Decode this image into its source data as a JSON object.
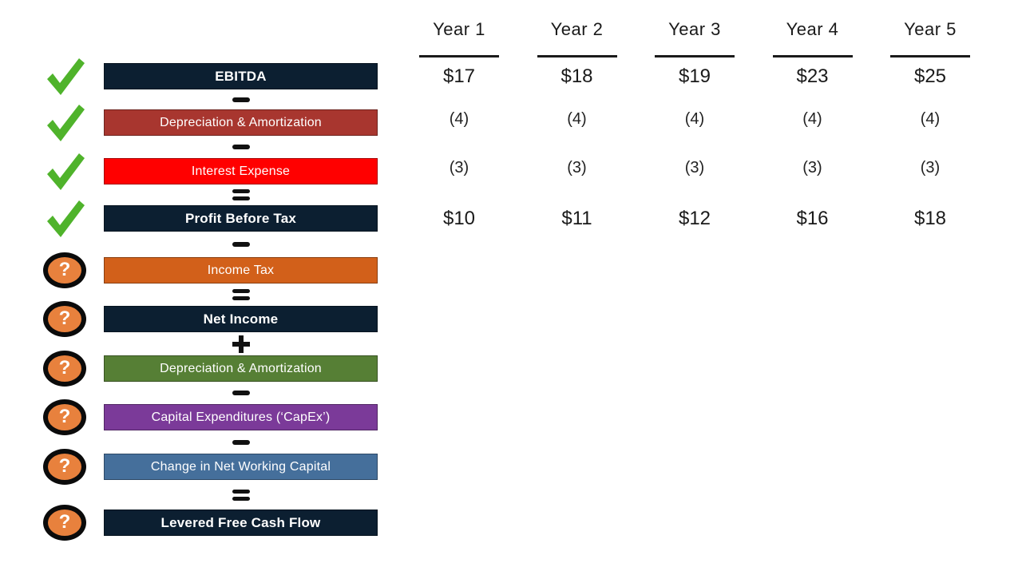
{
  "palette": {
    "navy": "#0C1F31",
    "brick_red": "#A8362F",
    "bright_red": "#FF0000",
    "orange": "#D2601A",
    "green_bar": "#567F35",
    "purple": "#7B3A99",
    "steel_blue": "#456F9B",
    "check_green": "#4FB32B",
    "question_fill": "#E8813D",
    "text_dark": "#1a1a1a"
  },
  "icons": {
    "question_glyph": "?"
  },
  "table": {
    "columns": [
      "Year 1",
      "Year 2",
      "Year 3",
      "Year 4",
      "Year 5"
    ]
  },
  "flow": {
    "rows": [
      {
        "label": "EBITDA",
        "color": "#0C1F31",
        "bold": true,
        "icon": "check",
        "operator_before": null,
        "values": [
          "$17",
          "$18",
          "$19",
          "$23",
          "$25"
        ],
        "value_style": "dollar"
      },
      {
        "label": "Depreciation & Amortization",
        "color": "#A8362F",
        "bold": false,
        "icon": "check",
        "operator_before": "minus",
        "values": [
          "(4)",
          "(4)",
          "(4)",
          "(4)",
          "(4)"
        ],
        "value_style": "paren"
      },
      {
        "label": "Interest Expense",
        "color": "#FF0000",
        "bold": false,
        "icon": "check",
        "operator_before": "minus",
        "values": [
          "(3)",
          "(3)",
          "(3)",
          "(3)",
          "(3)"
        ],
        "value_style": "paren"
      },
      {
        "label": "Profit Before Tax",
        "color": "#0C1F31",
        "bold": true,
        "icon": "check",
        "operator_before": "equals",
        "values": [
          "$10",
          "$11",
          "$12",
          "$16",
          "$18"
        ],
        "value_style": "dollar"
      },
      {
        "label": "Income Tax",
        "color": "#D2601A",
        "bold": false,
        "icon": "question",
        "operator_before": "minus",
        "values": [],
        "value_style": "none"
      },
      {
        "label": "Net Income",
        "color": "#0C1F31",
        "bold": true,
        "icon": "question",
        "operator_before": "equals",
        "values": [],
        "value_style": "none"
      },
      {
        "label": "Depreciation & Amortization",
        "color": "#567F35",
        "bold": false,
        "icon": "question",
        "operator_before": "plus",
        "values": [],
        "value_style": "none"
      },
      {
        "label": "Capital Expenditures (‘CapEx’)",
        "color": "#7B3A99",
        "bold": false,
        "icon": "question",
        "operator_before": "minus",
        "values": [],
        "value_style": "none"
      },
      {
        "label": "Change in Net Working Capital",
        "color": "#456F9B",
        "bold": false,
        "icon": "question",
        "operator_before": "minus",
        "values": [],
        "value_style": "none"
      },
      {
        "label": "Levered Free Cash Flow",
        "color": "#0C1F31",
        "bold": true,
        "icon": "question",
        "operator_before": "equals",
        "values": [],
        "value_style": "none"
      }
    ]
  }
}
